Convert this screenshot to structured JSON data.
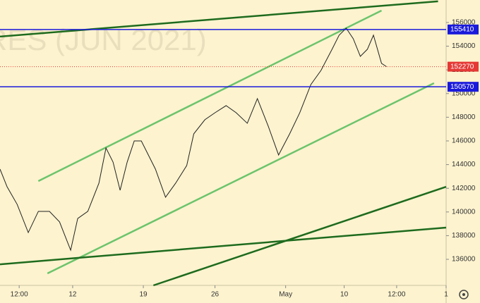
{
  "chart_data": {
    "type": "line",
    "watermark": "RES (JUN 2021)",
    "x": [
      -7.2,
      -6.5,
      -5.5,
      -4.4,
      -3.4,
      -2.3,
      -1.3,
      -0.2,
      0.5,
      1.5,
      2.6,
      3.3,
      4.0,
      4.7,
      5.4,
      6.1,
      6.8,
      7.5,
      8.2,
      9.2,
      10.2,
      11.3,
      12.0,
      13.1,
      14.1,
      15.2,
      16.2,
      17.3,
      18.3,
      19.4,
      20.4,
      21.5,
      22.5,
      23.6,
      24.6,
      25.7,
      26.4,
      27.1,
      27.8,
      28.5,
      29.2,
      29.8,
      30.6,
      31.1
    ],
    "series": [
      {
        "color": "#222222",
        "values": [
          143620,
          142130,
          140640,
          138260,
          140050,
          140050,
          139160,
          136770,
          139450,
          140050,
          142430,
          145400,
          144210,
          141830,
          144210,
          146000,
          146000,
          144810,
          143620,
          141240,
          142430,
          143920,
          146600,
          147790,
          148380,
          148980,
          148380,
          147490,
          149570,
          147190,
          144810,
          146600,
          148380,
          150760,
          151950,
          153740,
          154930,
          155520,
          154630,
          153140,
          153740,
          154930,
          152550,
          152270
        ]
      }
    ],
    "levels": [
      {
        "value": 155410,
        "color": "#1a1adb"
      },
      {
        "value": 150570,
        "color": "#1a1adb"
      },
      {
        "value": 152270,
        "color": "#e53935",
        "dotted": true
      }
    ],
    "trendlines": [
      {
        "x": [
          -7.2,
          36.2
        ],
        "y": [
          154810,
          157790
        ],
        "color": "#1e6b1e"
      },
      {
        "x": [
          -3.4,
          30.6
        ],
        "y": [
          142610,
          157010
        ],
        "color": "#6cc46c"
      },
      {
        "x": [
          -2.5,
          35.8
        ],
        "y": [
          134810,
          150880
        ],
        "color": "#6cc46c"
      },
      {
        "x": [
          -7.2,
          37.0
        ],
        "y": [
          135580,
          138680
        ],
        "color": "#1e6b1e"
      },
      {
        "x": [
          8.0,
          37.0
        ],
        "y": [
          133800,
          142130
        ],
        "color": "#1e6b1e"
      }
    ],
    "xlim": [
      -7.2,
      37.0
    ],
    "ylim": [
      133800,
      157900
    ],
    "xticks": [
      {
        "value": -5.3,
        "label": "12:00"
      },
      {
        "value": 0,
        "label": "12"
      },
      {
        "value": 7,
        "label": "19"
      },
      {
        "value": 14.1,
        "label": "26"
      },
      {
        "value": 21.1,
        "label": "May"
      },
      {
        "value": 26.9,
        "label": "10"
      },
      {
        "value": 32.1,
        "label": "12:00"
      },
      {
        "value": 37.0,
        "label": "1"
      }
    ],
    "yticks": [
      136000,
      138000,
      140000,
      142000,
      144000,
      146000,
      148000,
      150000,
      152000,
      154000,
      156000
    ]
  }
}
